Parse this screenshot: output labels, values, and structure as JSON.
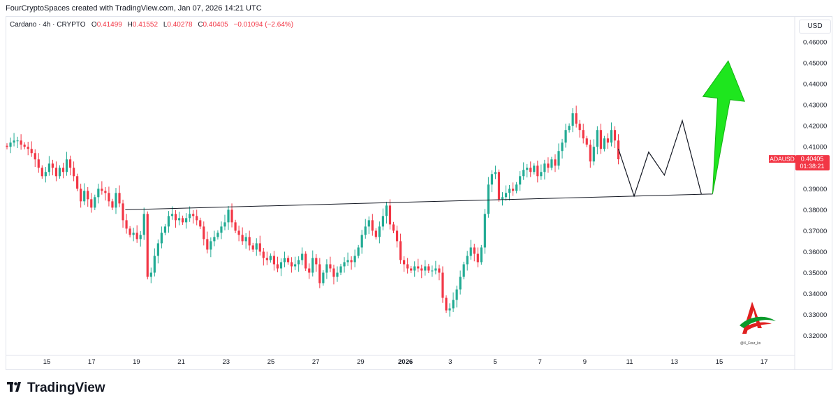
{
  "header": {
    "caption": "FourCryptoSpaces created with TradingView.com, Jan 07, 2026 14:21 UTC"
  },
  "legend": {
    "symbol": "Cardano · 4h · CRYPTO",
    "open_label": "O",
    "open": "0.41499",
    "high_label": "H",
    "high": "0.41552",
    "low_label": "L",
    "low": "0.40278",
    "close_label": "C",
    "close": "0.40405",
    "change": "−0.01094 (−2.64%)"
  },
  "currency": "USD",
  "price_tag": {
    "symbol": "ADAUSD",
    "price": "0.40405",
    "countdown": "01:38:21"
  },
  "footer": {
    "brand": "TradingView"
  },
  "author": {
    "tag": "@X_Four_ks"
  },
  "colors": {
    "up": "#22ab94",
    "down": "#f23645",
    "arrow": "#1ee61e",
    "line": "#131722"
  },
  "chart_data": {
    "type": "candlestick",
    "title": "Cardano · 4h · CRYPTO",
    "y_ticks": [
      0.32,
      0.33,
      0.34,
      0.35,
      0.36,
      0.37,
      0.38,
      0.39,
      0.4,
      0.41,
      0.42,
      0.43,
      0.44,
      0.45,
      0.46
    ],
    "ylim": [
      0.315,
      0.468
    ],
    "x_ticks": [
      "15",
      "17",
      "19",
      "21",
      "23",
      "25",
      "27",
      "29",
      "2026",
      "3",
      "5",
      "7",
      "9",
      "11",
      "13",
      "15",
      "17"
    ],
    "x_tick_index": [
      0,
      2,
      4,
      6,
      8,
      10,
      12,
      14,
      16,
      18,
      20,
      22,
      24,
      26,
      28,
      30,
      32
    ],
    "close_series": [
      0.41,
      0.412,
      0.413,
      0.413,
      0.411,
      0.41,
      0.409,
      0.407,
      0.404,
      0.4,
      0.396,
      0.398,
      0.402,
      0.4,
      0.396,
      0.4,
      0.398,
      0.404,
      0.4,
      0.396,
      0.39,
      0.384,
      0.389,
      0.385,
      0.381,
      0.386,
      0.39,
      0.389,
      0.388,
      0.384,
      0.381,
      0.388,
      0.383,
      0.375,
      0.371,
      0.368,
      0.369,
      0.366,
      0.368,
      0.378,
      0.348,
      0.35,
      0.358,
      0.364,
      0.369,
      0.372,
      0.377,
      0.378,
      0.375,
      0.376,
      0.374,
      0.376,
      0.378,
      0.377,
      0.375,
      0.372,
      0.366,
      0.361,
      0.365,
      0.367,
      0.369,
      0.372,
      0.374,
      0.38,
      0.374,
      0.37,
      0.368,
      0.365,
      0.367,
      0.363,
      0.361,
      0.364,
      0.36,
      0.357,
      0.356,
      0.358,
      0.354,
      0.352,
      0.355,
      0.357,
      0.355,
      0.353,
      0.354,
      0.356,
      0.359,
      0.352,
      0.35,
      0.357,
      0.354,
      0.345,
      0.35,
      0.354,
      0.352,
      0.348,
      0.35,
      0.353,
      0.355,
      0.356,
      0.355,
      0.358,
      0.362,
      0.368,
      0.372,
      0.375,
      0.37,
      0.367,
      0.372,
      0.377,
      0.382,
      0.373,
      0.37,
      0.365,
      0.356,
      0.354,
      0.352,
      0.351,
      0.353,
      0.352,
      0.351,
      0.353,
      0.351,
      0.351,
      0.352,
      0.35,
      0.338,
      0.332,
      0.333,
      0.337,
      0.342,
      0.348,
      0.354,
      0.358,
      0.362,
      0.359,
      0.355,
      0.362,
      0.378,
      0.392,
      0.397,
      0.398,
      0.385,
      0.386,
      0.388,
      0.39,
      0.389,
      0.392,
      0.396,
      0.399,
      0.4,
      0.398,
      0.401,
      0.396,
      0.398,
      0.402,
      0.4,
      0.404,
      0.401,
      0.408,
      0.412,
      0.418,
      0.42,
      0.426,
      0.421,
      0.418,
      0.414,
      0.411,
      0.403,
      0.41,
      0.418,
      0.409,
      0.414,
      0.412,
      0.418,
      0.413,
      0.40405
    ],
    "drawings": {
      "support_line": [
        [
          3.5,
          0.38
        ],
        [
          29.7,
          0.3875
        ]
      ],
      "projection_path": [
        [
          25.5,
          0.409
        ],
        [
          26.2,
          0.3865
        ],
        [
          26.85,
          0.4075
        ],
        [
          27.55,
          0.3965
        ],
        [
          28.35,
          0.4225
        ],
        [
          29.2,
          0.3875
        ]
      ],
      "target_arrow": {
        "from": [
          29.7,
          0.3875
        ],
        "to": [
          30.4,
          0.451
        ]
      }
    }
  }
}
